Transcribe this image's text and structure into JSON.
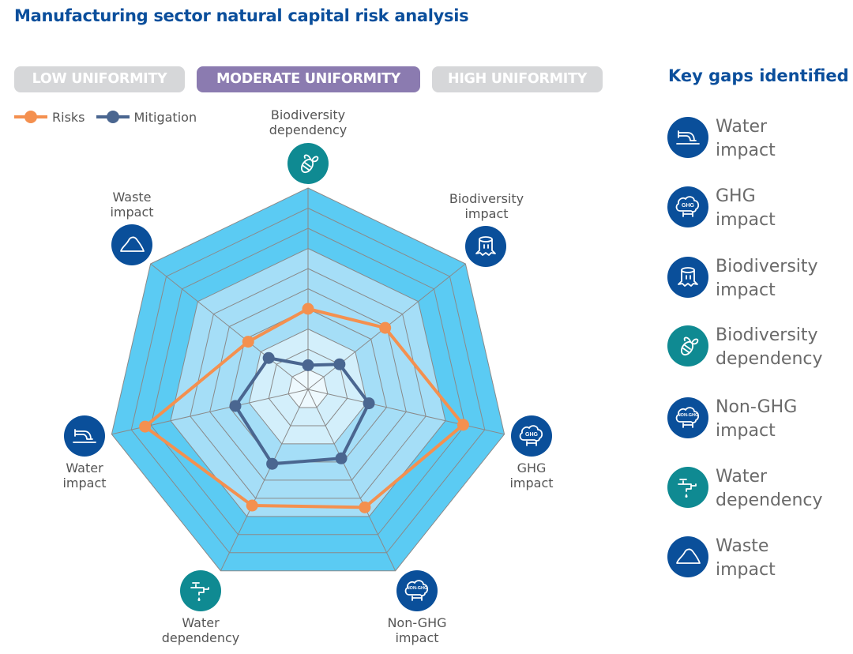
{
  "title": "Manufacturing sector natural capital risk analysis",
  "uniformity_tabs": [
    {
      "label": "LOW UNIFORMITY",
      "active": false
    },
    {
      "label": "MODERATE UNIFORMITY",
      "active": true
    },
    {
      "label": "HIGH UNIFORMITY",
      "active": false
    }
  ],
  "colors": {
    "title": "#0b4f9c",
    "risks": "#f4904f",
    "mitigation": "#4a6690",
    "impact_icon": "#0a4f9a",
    "dependency_icon": "#0f8a92",
    "ring_outer": "#5bcbf3",
    "ring_mid": "#a5def7",
    "ring_inner": "#d3effb"
  },
  "chart_data": {
    "type": "radar",
    "title": "Manufacturing sector natural capital risk analysis",
    "axes": [
      {
        "label_line1": "Biodiversity",
        "label_line2": "dependency",
        "icon": "bee-icon",
        "kind": "dependency"
      },
      {
        "label_line1": "Biodiversity",
        "label_line2": "impact",
        "icon": "tree-stump-icon",
        "kind": "impact"
      },
      {
        "label_line1": "GHG",
        "label_line2": "impact",
        "icon": "ghg-cloud-icon",
        "kind": "impact",
        "icon_text": "GHG"
      },
      {
        "label_line1": "Non-GHG",
        "label_line2": "impact",
        "icon": "non-ghg-cloud-icon",
        "kind": "impact",
        "icon_text": "NON-GHG"
      },
      {
        "label_line1": "Water",
        "label_line2": "dependency",
        "icon": "water-tap-icon",
        "kind": "dependency"
      },
      {
        "label_line1": "Water",
        "label_line2": "impact",
        "icon": "water-pipe-icon",
        "kind": "impact"
      },
      {
        "label_line1": "Waste",
        "label_line2": "impact",
        "icon": "waste-pile-icon",
        "kind": "impact"
      }
    ],
    "range": [
      0,
      10
    ],
    "rings": 10,
    "legend": "top-left",
    "series": [
      {
        "name": "Risks",
        "values": [
          4.0,
          4.9,
          7.9,
          6.5,
          6.4,
          8.3,
          3.8
        ]
      },
      {
        "name": "Mitigation",
        "values": [
          1.2,
          2.0,
          3.1,
          3.8,
          4.1,
          3.7,
          2.5
        ]
      }
    ]
  },
  "key_gaps": {
    "title": "Key gaps identified",
    "items": [
      {
        "line1": "Water",
        "line2": "impact",
        "icon": "water-pipe-icon",
        "kind": "impact"
      },
      {
        "line1": "GHG",
        "line2": "impact",
        "icon": "ghg-cloud-icon",
        "kind": "impact",
        "icon_text": "GHG"
      },
      {
        "line1": "Biodiversity",
        "line2": "impact",
        "icon": "tree-stump-icon",
        "kind": "impact"
      },
      {
        "line1": "Biodiversity",
        "line2": "dependency",
        "icon": "bee-icon",
        "kind": "dependency"
      },
      {
        "line1": "Non-GHG",
        "line2": "impact",
        "icon": "non-ghg-cloud-icon",
        "kind": "impact",
        "icon_text": "NON-GHG"
      },
      {
        "line1": "Water",
        "line2": "dependency",
        "icon": "water-tap-icon",
        "kind": "dependency"
      },
      {
        "line1": "Waste",
        "line2": "impact",
        "icon": "waste-pile-icon",
        "kind": "impact"
      }
    ]
  }
}
